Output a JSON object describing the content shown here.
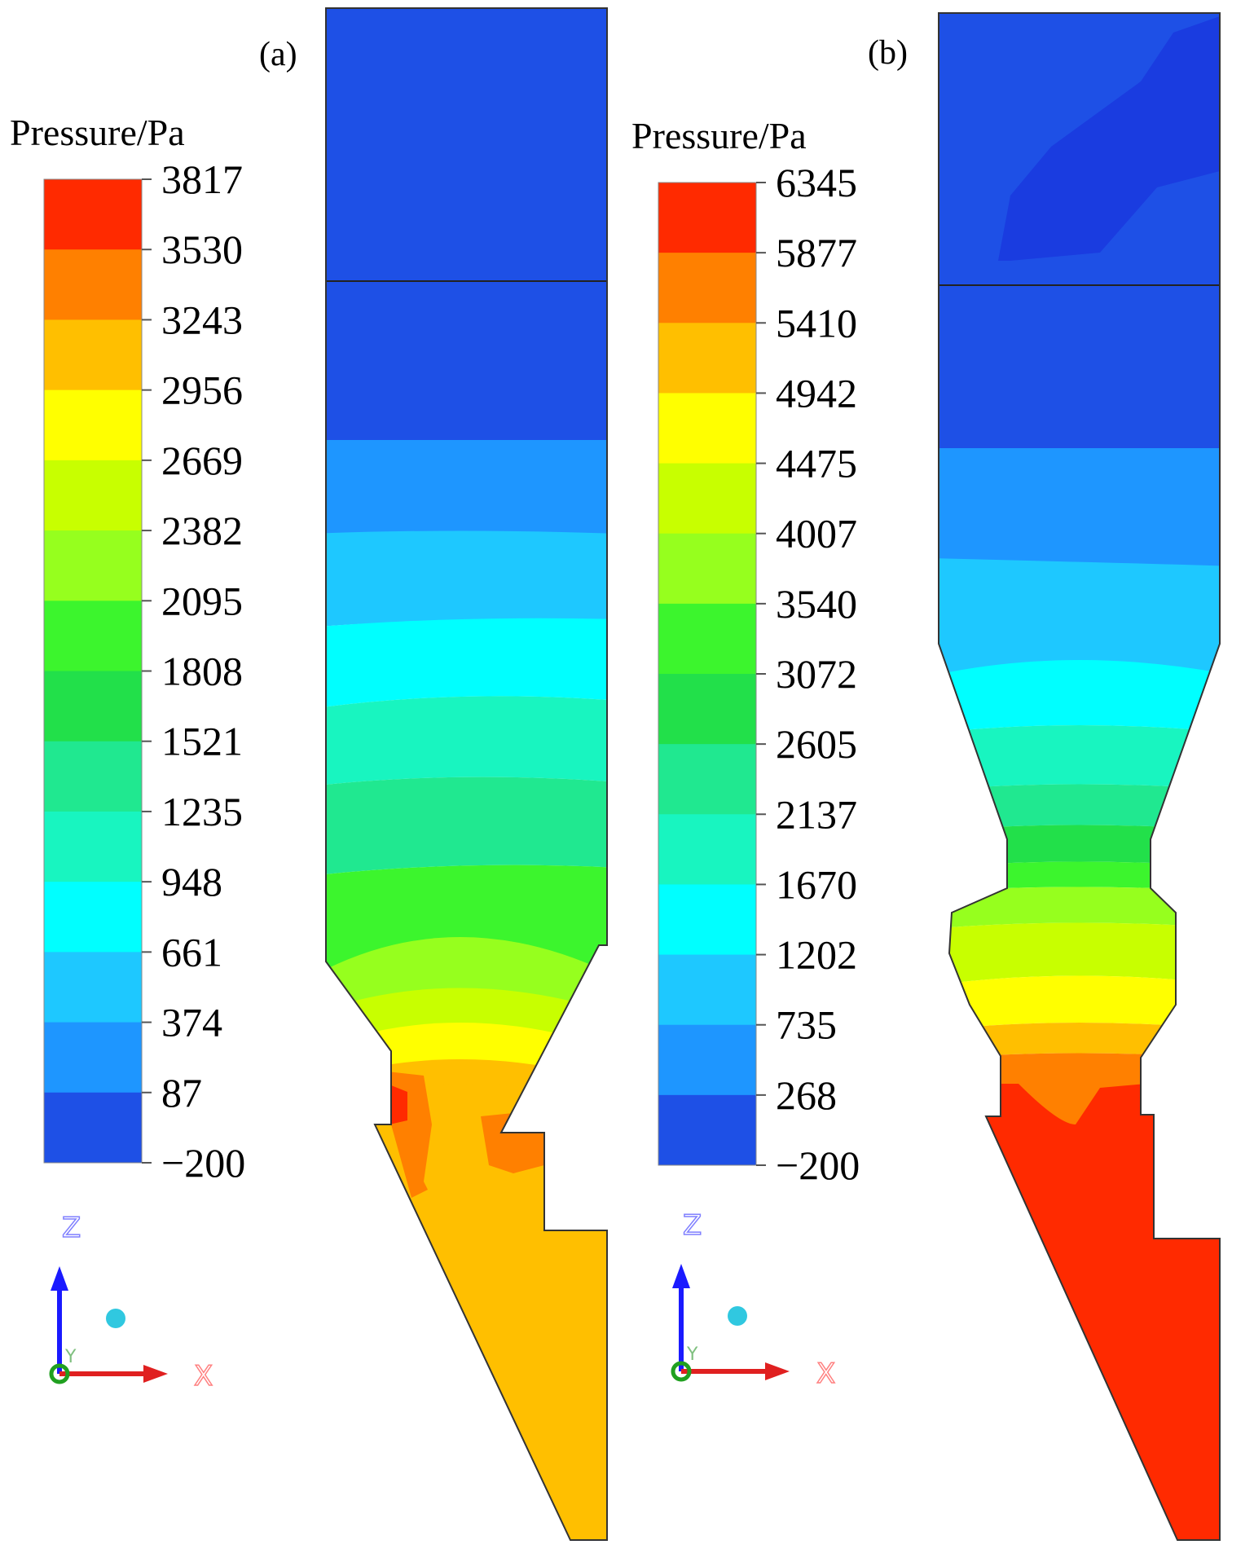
{
  "figure": {
    "panels": [
      {
        "id": "a",
        "label": "(a)",
        "colorbar": {
          "title": "Pressure/Pa",
          "tick_labels": [
            "3817",
            "3530",
            "3243",
            "2956",
            "2669",
            "2382",
            "2095",
            "1808",
            "1521",
            "1235",
            "948",
            "661",
            "374",
            "87",
            "−200"
          ]
        },
        "triad": {
          "z_label": "Z",
          "x_label": "X",
          "y_label": "Y"
        }
      },
      {
        "id": "b",
        "label": "(b)",
        "colorbar": {
          "title": "Pressure/Pa",
          "tick_labels": [
            "6345",
            "5877",
            "5410",
            "4942",
            "4475",
            "4007",
            "3540",
            "3072",
            "2605",
            "2137",
            "1670",
            "1202",
            "735",
            "268",
            "−200"
          ]
        },
        "triad": {
          "z_label": "Z",
          "x_label": "X",
          "y_label": "Y"
        }
      }
    ],
    "color_levels": [
      "#ff2a00",
      "#ff8000",
      "#ffbf00",
      "#ffff00",
      "#c8ff00",
      "#96ff1e",
      "#3cf52d",
      "#22e04a",
      "#20e890",
      "#18f5c0",
      "#00ffff",
      "#1ec8ff",
      "#1e96ff",
      "#1e50e6"
    ],
    "triad_colors": {
      "z": "#1a1aff",
      "x": "#e02020",
      "y": "#20a020",
      "dot": "#30c8e0"
    }
  }
}
